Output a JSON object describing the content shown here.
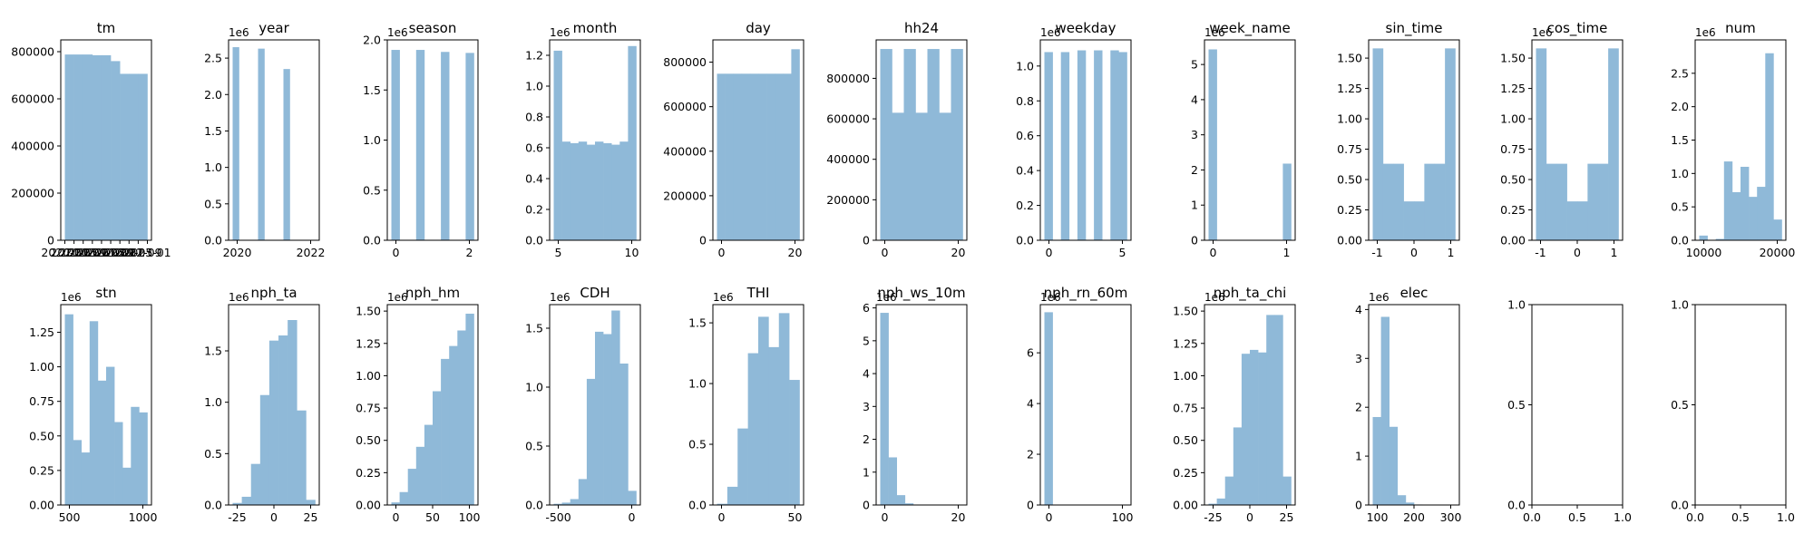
{
  "colors": {
    "bar": "#8fb9d8"
  },
  "chart_data": [
    {
      "type": "bar",
      "title": "tm",
      "ylim": [
        0,
        850000
      ],
      "y_ticks": [
        "0",
        "200000",
        "400000",
        "600000",
        "800000"
      ],
      "x_ticks": [
        "2020-01",
        "2020-05",
        "2020-09",
        "2021-01",
        "2021-05",
        "2021-09",
        "2022-01",
        "2022-05",
        "2022-09",
        "2023-01"
      ],
      "x_overlapping": true,
      "values": [
        788000,
        788000,
        788000,
        785000,
        785000,
        760000,
        706000,
        706000,
        706000
      ]
    },
    {
      "type": "bar",
      "title": "year",
      "ylim": [
        0,
        2.75
      ],
      "offset": "1e6",
      "y_ticks": [
        "0.0",
        "0.5",
        "1.0",
        "1.5",
        "2.0",
        "2.5"
      ],
      "x_ticks": [
        "2020",
        "2022"
      ],
      "values": [
        2.65,
        0,
        0,
        0,
        2.63,
        0,
        0,
        0,
        2.35,
        0,
        0,
        0,
        0
      ]
    },
    {
      "type": "bar",
      "title": "season",
      "ylim": [
        0,
        2.0
      ],
      "offset": "1e6",
      "y_ticks": [
        "0.0",
        "0.5",
        "1.0",
        "1.5",
        "2.0"
      ],
      "x_ticks": [
        "0",
        "2"
      ],
      "values": [
        1.9,
        0,
        0,
        1.9,
        0,
        0,
        1.88,
        0,
        0,
        1.87
      ]
    },
    {
      "type": "bar",
      "title": "month",
      "ylim": [
        0,
        1.3
      ],
      "offset": "1e6",
      "y_ticks": [
        "0.0",
        "0.2",
        "0.4",
        "0.6",
        "0.8",
        "1.0",
        "1.2"
      ],
      "x_ticks": [
        "5",
        "10"
      ],
      "values": [
        1.23,
        0.64,
        0.63,
        0.64,
        0.62,
        0.64,
        0.63,
        0.62,
        0.64,
        1.26
      ]
    },
    {
      "type": "bar",
      "title": "day",
      "ylim": [
        0,
        900000
      ],
      "y_ticks": [
        "0",
        "200000",
        "400000",
        "600000",
        "800000"
      ],
      "x_ticks": [
        "0",
        "20"
      ],
      "values": [
        748000,
        748000,
        748000,
        748000,
        748000,
        748000,
        748000,
        748000,
        748000,
        858000
      ]
    },
    {
      "type": "bar",
      "title": "hh24",
      "ylim": [
        0,
        990000
      ],
      "y_ticks": [
        "0",
        "200000",
        "400000",
        "600000",
        "800000"
      ],
      "x_ticks": [
        "0",
        "20"
      ],
      "values": [
        945000,
        630000,
        945000,
        630000,
        945000,
        630000,
        945000
      ]
    },
    {
      "type": "bar",
      "title": "weekday",
      "ylim": [
        0,
        1.15
      ],
      "offset": "1e6",
      "y_ticks": [
        "0.0",
        "0.2",
        "0.4",
        "0.6",
        "0.8",
        "1.0"
      ],
      "x_ticks": [
        "0",
        "5"
      ],
      "values": [
        1.08,
        0,
        1.08,
        0,
        1.09,
        0,
        1.09,
        0,
        1.09,
        1.08
      ]
    },
    {
      "type": "bar",
      "title": "week_name",
      "ylim": [
        0,
        5.7
      ],
      "offset": "1e6",
      "y_ticks": [
        "0",
        "1",
        "2",
        "3",
        "4",
        "5"
      ],
      "x_ticks": [
        "0",
        "1"
      ],
      "values": [
        5.43,
        0,
        0,
        0,
        0,
        0,
        0,
        0,
        0,
        2.18
      ]
    },
    {
      "type": "bar",
      "title": "sin_time",
      "ylim": [
        0,
        1.65
      ],
      "offset": "",
      "y_ticks": [
        "0.00",
        "0.25",
        "0.50",
        "0.75",
        "1.00",
        "1.25",
        "1.50"
      ],
      "x_ticks": [
        "-1",
        "0",
        "1"
      ],
      "values": [
        1.58,
        0.63,
        0.63,
        0.32,
        0.32,
        0.63,
        0.63,
        1.58
      ]
    },
    {
      "type": "bar",
      "title": "cos_time",
      "ylim": [
        0,
        1.65
      ],
      "offset": "1e6",
      "y_ticks": [
        "0.00",
        "0.25",
        "0.50",
        "0.75",
        "1.00",
        "1.25",
        "1.50"
      ],
      "x_ticks": [
        "-1",
        "0",
        "1"
      ],
      "values": [
        1.58,
        0.63,
        0.63,
        0.32,
        0.32,
        0.63,
        0.63,
        1.58
      ]
    },
    {
      "type": "bar",
      "title": "num",
      "ylim": [
        0,
        3.0
      ],
      "offset": "1e6",
      "y_ticks": [
        "0.0",
        "0.5",
        "1.0",
        "1.5",
        "2.0",
        "2.5"
      ],
      "x_ticks": [
        "10000",
        "20000"
      ],
      "values": [
        0.07,
        0,
        0.02,
        1.18,
        0.72,
        1.1,
        0.65,
        0.8,
        2.8,
        0.31
      ]
    },
    {
      "type": "bar",
      "title": "stn",
      "ylim": [
        0,
        1.45
      ],
      "offset": "1e6",
      "y_ticks": [
        "0.00",
        "0.25",
        "0.50",
        "0.75",
        "1.00",
        "1.25"
      ],
      "x_ticks": [
        "500",
        "1000"
      ],
      "values": [
        1.38,
        0.47,
        0.38,
        1.33,
        0.9,
        1.0,
        0.6,
        0.27,
        0.71,
        0.67
      ]
    },
    {
      "type": "bar",
      "title": "nph_ta",
      "ylim": [
        0,
        1.95
      ],
      "offset": "1e6",
      "y_ticks": [
        "0.0",
        "0.5",
        "1.0",
        "1.5"
      ],
      "x_ticks": [
        "-25",
        "0",
        "25"
      ],
      "values": [
        0.02,
        0.08,
        0.4,
        1.07,
        1.6,
        1.65,
        1.8,
        0.92,
        0.05
      ]
    },
    {
      "type": "bar",
      "title": "nph_hm",
      "ylim": [
        0,
        1.55
      ],
      "offset": "1e6",
      "y_ticks": [
        "0.00",
        "0.25",
        "0.50",
        "0.75",
        "1.00",
        "1.25",
        "1.50"
      ],
      "x_ticks": [
        "0",
        "50",
        "100"
      ],
      "values": [
        0.02,
        0.1,
        0.28,
        0.45,
        0.62,
        0.88,
        1.13,
        1.23,
        1.35,
        1.48
      ]
    },
    {
      "type": "bar",
      "title": "CDH",
      "ylim": [
        0,
        1.7
      ],
      "offset": "1e6",
      "y_ticks": [
        "0.0",
        "0.5",
        "1.0",
        "1.5"
      ],
      "x_ticks": [
        "-500",
        "0"
      ],
      "values": [
        0.01,
        0.02,
        0.05,
        0.22,
        1.07,
        1.47,
        1.45,
        1.65,
        1.2,
        0.12
      ]
    },
    {
      "type": "bar",
      "title": "THI",
      "ylim": [
        0,
        1.65
      ],
      "offset": "1e6",
      "y_ticks": [
        "0.0",
        "0.5",
        "1.0",
        "1.5"
      ],
      "x_ticks": [
        "0",
        "50"
      ],
      "values": [
        0.01,
        0.15,
        0.63,
        1.25,
        1.55,
        1.3,
        1.58,
        1.03
      ]
    },
    {
      "type": "bar",
      "title": "nph_ws_10m",
      "ylim": [
        0,
        6.1
      ],
      "offset": "1e6",
      "y_ticks": [
        "0",
        "1",
        "2",
        "3",
        "4",
        "5",
        "6"
      ],
      "x_ticks": [
        "0",
        "20"
      ],
      "values": [
        5.85,
        1.45,
        0.3,
        0.05,
        0.01,
        0,
        0,
        0,
        0,
        0
      ]
    },
    {
      "type": "bar",
      "title": "nph_rn_60m",
      "ylim": [
        0,
        7.9
      ],
      "offset": "1e6",
      "y_ticks": [
        "0",
        "2",
        "4",
        "6"
      ],
      "x_ticks": [
        "0",
        "100"
      ],
      "values": [
        7.6,
        0,
        0,
        0,
        0,
        0,
        0,
        0,
        0,
        0
      ]
    },
    {
      "type": "bar",
      "title": "nph_ta_chi",
      "ylim": [
        0,
        1.55
      ],
      "offset": "1e6",
      "y_ticks": [
        "0.00",
        "0.25",
        "0.50",
        "0.75",
        "1.00",
        "1.25",
        "1.50"
      ],
      "x_ticks": [
        "-25",
        "0",
        "25"
      ],
      "values": [
        0.01,
        0.05,
        0.22,
        0.6,
        1.17,
        1.2,
        1.18,
        1.47,
        1.47,
        0.22
      ]
    },
    {
      "type": "bar",
      "title": "elec",
      "ylim": [
        0,
        4.1
      ],
      "offset": "1e6",
      "y_ticks": [
        "0",
        "1",
        "2",
        "3",
        "4"
      ],
      "x_ticks": [
        "100",
        "200",
        "300"
      ],
      "values": [
        1.8,
        3.85,
        1.6,
        0.2,
        0.05,
        0.01,
        0,
        0,
        0,
        0
      ]
    },
    {
      "type": "empty",
      "title": "",
      "ylim": [
        0,
        1
      ],
      "y_ticks": [
        "0.0",
        "0.5",
        "1.0"
      ],
      "x_ticks": [
        "0.0",
        "0.5",
        "1.0"
      ]
    },
    {
      "type": "empty",
      "title": "",
      "ylim": [
        0,
        1
      ],
      "y_ticks": [
        "0.0",
        "0.5",
        "1.0"
      ],
      "x_ticks": [
        "0.0",
        "0.5",
        "1.0"
      ]
    }
  ]
}
